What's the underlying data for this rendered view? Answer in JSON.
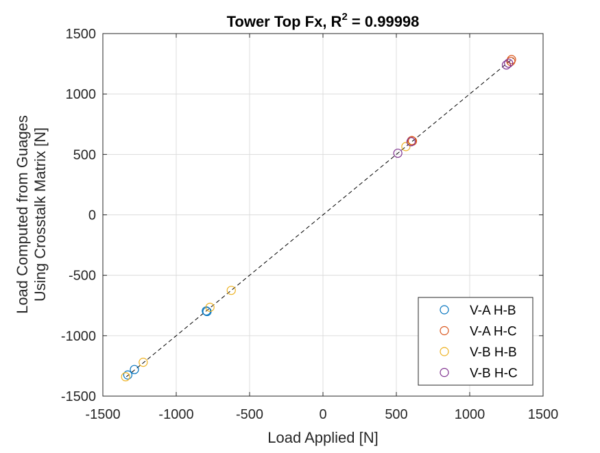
{
  "chart_data": {
    "type": "scatter",
    "title": "Tower Top Fx, R",
    "title_superscript": "2",
    "title_suffix": " = 0.99998",
    "xlabel": "Load Applied [N]",
    "ylabel_line1": "Load Computed from Guages",
    "ylabel_line2": "Using Crosstalk Matrix [N]",
    "xlim": [
      -1500,
      1500
    ],
    "ylim": [
      -1500,
      1500
    ],
    "xticks": [
      -1500,
      -1000,
      -500,
      0,
      500,
      1000,
      1500
    ],
    "yticks": [
      -1500,
      -1000,
      -500,
      0,
      500,
      1000,
      1500
    ],
    "xtick_labels": [
      "-1500",
      "-1000",
      "-500",
      "0",
      "500",
      "1000",
      "1500"
    ],
    "ytick_labels": [
      "-1500",
      "-1000",
      "-500",
      "0",
      "500",
      "1000",
      "1500"
    ],
    "grid": true,
    "legend_position": "bottom-right",
    "reference_line": {
      "from": [
        -1340,
        -1340
      ],
      "to": [
        1300,
        1300
      ],
      "style": "dashed",
      "color": "#000000"
    },
    "series": [
      {
        "name": "V-A H-B",
        "color": "#0072BD",
        "points": [
          [
            -1330,
            -1325
          ],
          [
            -1285,
            -1280
          ],
          [
            -795,
            -795
          ],
          [
            -790,
            -800
          ]
        ]
      },
      {
        "name": "V-A H-C",
        "color": "#D95319",
        "points": [
          [
            1285,
            1285
          ],
          [
            1280,
            1270
          ],
          [
            610,
            610
          ],
          [
            605,
            615
          ]
        ]
      },
      {
        "name": "V-B H-B",
        "color": "#EDB120",
        "points": [
          [
            -1345,
            -1340
          ],
          [
            -1225,
            -1220
          ],
          [
            -770,
            -765
          ],
          [
            -625,
            -625
          ],
          [
            565,
            565
          ]
        ]
      },
      {
        "name": "V-B H-C",
        "color": "#7E2F8E",
        "points": [
          [
            1250,
            1240
          ],
          [
            1265,
            1255
          ],
          [
            510,
            510
          ],
          [
            600,
            605
          ]
        ]
      }
    ]
  }
}
